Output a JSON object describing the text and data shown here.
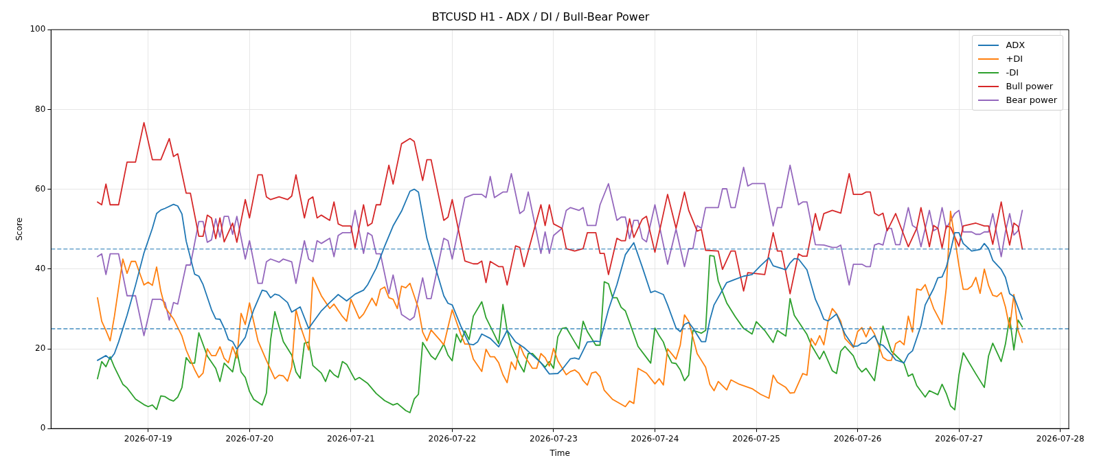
{
  "chart_data": {
    "type": "line",
    "title": "BTCUSD H1 - ADX / DI / Bull-Bear Power",
    "xlabel": "Time",
    "ylabel": "Score",
    "xlim": [
      "2026-07-18T01:00",
      "2026-07-28T02:00"
    ],
    "xticks": [
      "2026-07-19",
      "2026-07-20",
      "2026-07-21",
      "2026-07-22",
      "2026-07-23",
      "2026-07-24",
      "2026-07-25",
      "2026-07-26",
      "2026-07-27",
      "2026-07-28"
    ],
    "ylim": [
      0,
      100
    ],
    "yticks": [
      0,
      20,
      40,
      60,
      80,
      100
    ],
    "grid": true,
    "legend": "top right",
    "ref_lines": [
      {
        "axis": "y",
        "value": 45,
        "color": "#1f77b4",
        "line_style": "dashed"
      },
      {
        "axis": "y",
        "value": 25,
        "color": "#1f77b4",
        "line_style": "dashed"
      }
    ],
    "series": [
      {
        "name": "ADX",
        "color": "#1f77b4",
        "x": [
          "2026-07-18T12:00",
          "2026-07-18T13:00",
          "2026-07-18T14:00",
          "2026-07-18T15:00",
          "2026-07-18T16:00",
          "2026-07-18T17:00",
          "2026-07-18T19:00",
          "2026-07-18T21:00",
          "2026-07-18T23:00",
          "2026-07-19T01:00",
          "2026-07-19T02:00",
          "2026-07-19T03:00",
          "2026-07-19T04:00",
          "2026-07-19T06:00",
          "2026-07-19T07:00",
          "2026-07-19T08:00",
          "2026-07-19T09:00",
          "2026-07-19T11:00",
          "2026-07-19T12:00",
          "2026-07-19T13:00",
          "2026-07-19T15:00",
          "2026-07-19T16:00",
          "2026-07-19T17:00",
          "2026-07-19T18:00",
          "2026-07-19T19:00",
          "2026-07-19T20:00",
          "2026-07-19T21:00",
          "2026-07-19T22:00",
          "2026-07-19T23:00",
          "2026-07-20T00:00",
          "2026-07-20T01:00",
          "2026-07-20T03:00",
          "2026-07-20T04:00",
          "2026-07-20T05:00",
          "2026-07-20T06:00",
          "2026-07-20T07:00",
          "2026-07-20T09:00",
          "2026-07-20T10:00",
          "2026-07-20T12:00",
          "2026-07-20T14:00",
          "2026-07-20T15:00",
          "2026-07-20T17:00",
          "2026-07-20T19:00",
          "2026-07-20T21:00",
          "2026-07-20T23:00",
          "2026-07-21T01:00",
          "2026-07-21T03:00",
          "2026-07-21T04:00",
          "2026-07-21T06:00",
          "2026-07-21T08:00",
          "2026-07-21T10:00",
          "2026-07-21T12:00",
          "2026-07-21T14:00",
          "2026-07-21T15:00",
          "2026-07-21T16:00",
          "2026-07-21T18:00",
          "2026-07-21T20:00",
          "2026-07-21T22:00",
          "2026-07-21T23:00",
          "2026-07-22T00:00",
          "2026-07-22T02:00",
          "2026-07-22T04:00",
          "2026-07-22T05:00",
          "2026-07-22T06:00",
          "2026-07-22T07:00",
          "2026-07-22T09:00",
          "2026-07-22T11:00",
          "2026-07-22T13:00",
          "2026-07-22T15:00",
          "2026-07-22T17:00",
          "2026-07-22T19:00",
          "2026-07-22T21:00",
          "2026-07-22T23:00",
          "2026-07-23T01:00",
          "2026-07-23T02:00",
          "2026-07-23T04:00",
          "2026-07-23T05:00",
          "2026-07-23T06:00",
          "2026-07-23T08:00",
          "2026-07-23T10:00",
          "2026-07-23T11:00",
          "2026-07-23T13:00",
          "2026-07-23T15:00",
          "2026-07-23T17:00",
          "2026-07-23T19:00",
          "2026-07-23T21:00",
          "2026-07-23T23:00",
          "2026-07-24T00:00",
          "2026-07-24T02:00",
          "2026-07-24T03:00",
          "2026-07-24T05:00",
          "2026-07-24T06:00",
          "2026-07-24T07:00",
          "2026-07-24T08:00",
          "2026-07-24T09:00",
          "2026-07-24T11:00",
          "2026-07-24T12:00",
          "2026-07-24T13:00",
          "2026-07-24T14:00",
          "2026-07-24T17:00",
          "2026-07-24T19:00",
          "2026-07-24T21:00",
          "2026-07-24T23:00",
          "2026-07-25T01:00",
          "2026-07-25T03:00",
          "2026-07-25T04:00",
          "2026-07-25T07:00",
          "2026-07-25T08:00",
          "2026-07-25T09:00",
          "2026-07-25T10:00",
          "2026-07-25T12:00",
          "2026-07-25T14:00",
          "2026-07-25T15:00",
          "2026-07-25T16:00",
          "2026-07-25T17:00",
          "2026-07-25T19:00",
          "2026-07-25T21:00",
          "2026-07-25T23:00",
          "2026-07-26T00:00",
          "2026-07-26T01:00",
          "2026-07-26T02:00",
          "2026-07-26T04:00",
          "2026-07-26T05:00",
          "2026-07-26T06:00",
          "2026-07-26T08:00",
          "2026-07-26T09:00",
          "2026-07-26T11:00",
          "2026-07-26T12:00",
          "2026-07-26T13:00",
          "2026-07-26T15:00",
          "2026-07-26T16:00",
          "2026-07-26T18:00",
          "2026-07-26T19:00",
          "2026-07-26T20:00",
          "2026-07-26T21:00",
          "2026-07-26T22:00",
          "2026-07-26T23:00",
          "2026-07-27T00:00",
          "2026-07-27T01:00",
          "2026-07-27T03:00",
          "2026-07-27T05:00",
          "2026-07-27T06:00",
          "2026-07-27T07:00",
          "2026-07-27T08:00",
          "2026-07-27T10:00",
          "2026-07-27T11:00",
          "2026-07-27T12:00",
          "2026-07-27T13:00",
          "2026-07-27T15:00"
        ],
        "values": [
          17.1,
          17.7,
          18.3,
          17.4,
          18.8,
          21.7,
          28.4,
          35.9,
          44.0,
          50.2,
          53.9,
          54.8,
          55.2,
          56.2,
          55.8,
          53.8,
          47.0,
          38.7,
          38.2,
          36.1,
          29.8,
          27.5,
          27.4,
          25.2,
          22.3,
          21.8,
          19.9,
          21.4,
          22.9,
          26.6,
          29.8,
          34.7,
          34.4,
          32.8,
          33.7,
          33.4,
          31.6,
          29.2,
          30.5,
          25.1,
          26.6,
          29.5,
          31.6,
          33.6,
          32.0,
          33.7,
          34.7,
          36.1,
          40.2,
          45.7,
          50.8,
          54.5,
          59.5,
          60.0,
          59.3,
          47.7,
          40.5,
          33.3,
          31.4,
          31.0,
          25.8,
          21.2,
          21.0,
          21.7,
          23.7,
          22.6,
          20.5,
          24.6,
          21.7,
          20.3,
          18.4,
          16.5,
          13.7,
          13.8,
          14.8,
          17.5,
          17.7,
          17.4,
          21.7,
          21.9,
          21.8,
          29.8,
          36.1,
          43.6,
          46.6,
          40.5,
          34.1,
          34.5,
          33.6,
          31.0,
          25.2,
          24.3,
          26.1,
          26.6,
          25.2,
          21.8,
          21.8,
          27.2,
          31.0,
          36.6,
          37.4,
          38.2,
          38.6,
          40.8,
          42.8,
          40.8,
          39.8,
          41.5,
          42.6,
          42.5,
          39.8,
          32.4,
          30.1,
          27.4,
          27.0,
          28.7,
          23.7,
          20.6,
          20.7,
          21.4,
          21.4,
          23.3,
          21.2,
          20.9,
          18.6,
          17.2,
          16.5,
          18.6,
          19.5,
          25.8,
          31.0,
          35.1,
          37.8,
          38.0,
          40.5,
          44.5,
          49.1,
          49.1,
          46.4,
          44.5,
          44.9,
          46.4,
          45.1,
          42.2,
          39.9,
          37.9,
          33.8,
          33.1,
          27.4
        ]
      },
      {
        "name": "+DI",
        "color": "#ff7f0e",
        "x": [
          "2026-07-18T12:00",
          "2026-07-18T13:00",
          "2026-07-18T14:00",
          "2026-07-18T15:00",
          "2026-07-18T16:00",
          "2026-07-18T18:00",
          "2026-07-18T19:00",
          "2026-07-18T20:00",
          "2026-07-18T21:00",
          "2026-07-18T23:00",
          "2026-07-19T00:00",
          "2026-07-19T01:00",
          "2026-07-19T02:00",
          "2026-07-19T03:00",
          "2026-07-19T04:00",
          "2026-07-19T06:00",
          "2026-07-19T08:00",
          "2026-07-19T09:00",
          "2026-07-19T11:00",
          "2026-07-19T12:00",
          "2026-07-19T13:00",
          "2026-07-19T14:00",
          "2026-07-19T15:00",
          "2026-07-19T16:00",
          "2026-07-19T17:00",
          "2026-07-19T18:00",
          "2026-07-19T19:00",
          "2026-07-19T20:00",
          "2026-07-19T21:00",
          "2026-07-19T22:00",
          "2026-07-19T23:00",
          "2026-07-20T00:00",
          "2026-07-20T02:00",
          "2026-07-20T04:00",
          "2026-07-20T06:00",
          "2026-07-20T07:00",
          "2026-07-20T08:00",
          "2026-07-20T09:00",
          "2026-07-20T10:00",
          "2026-07-20T11:00",
          "2026-07-20T12:00",
          "2026-07-20T14:00",
          "2026-07-20T15:00",
          "2026-07-20T17:00",
          "2026-07-20T19:00",
          "2026-07-20T20:00",
          "2026-07-20T22:00",
          "2026-07-20T23:00",
          "2026-07-21T00:00",
          "2026-07-21T02:00",
          "2026-07-21T03:00",
          "2026-07-21T05:00",
          "2026-07-21T06:00",
          "2026-07-21T07:00",
          "2026-07-21T08:00",
          "2026-07-21T09:00",
          "2026-07-21T10:00",
          "2026-07-21T11:00",
          "2026-07-21T12:00",
          "2026-07-21T13:00",
          "2026-07-21T14:00",
          "2026-07-21T16:00",
          "2026-07-21T17:00",
          "2026-07-21T18:00",
          "2026-07-21T19:00",
          "2026-07-21T21:00",
          "2026-07-21T22:00",
          "2026-07-22T00:00",
          "2026-07-22T02:00",
          "2026-07-22T03:00",
          "2026-07-22T04:00",
          "2026-07-22T05:00",
          "2026-07-22T07:00",
          "2026-07-22T08:00",
          "2026-07-22T09:00",
          "2026-07-22T10:00",
          "2026-07-22T11:00",
          "2026-07-22T12:00",
          "2026-07-22T13:00",
          "2026-07-22T14:00",
          "2026-07-22T15:00",
          "2026-07-22T16:00",
          "2026-07-22T17:00",
          "2026-07-22T19:00",
          "2026-07-22T20:00",
          "2026-07-22T21:00",
          "2026-07-22T22:00",
          "2026-07-22T23:00",
          "2026-07-23T00:00",
          "2026-07-23T01:00",
          "2026-07-23T03:00",
          "2026-07-23T04:00",
          "2026-07-23T05:00",
          "2026-07-23T06:00",
          "2026-07-23T07:00",
          "2026-07-23T08:00",
          "2026-07-23T09:00",
          "2026-07-23T10:00",
          "2026-07-23T11:00",
          "2026-07-23T12:00",
          "2026-07-23T14:00",
          "2026-07-23T17:00",
          "2026-07-23T18:00",
          "2026-07-23T19:00",
          "2026-07-23T20:00",
          "2026-07-23T22:00",
          "2026-07-24T00:00",
          "2026-07-24T01:00",
          "2026-07-24T02:00",
          "2026-07-24T03:00",
          "2026-07-24T05:00",
          "2026-07-24T06:00",
          "2026-07-24T07:00",
          "2026-07-24T08:00",
          "2026-07-24T10:00",
          "2026-07-24T12:00",
          "2026-07-24T13:00",
          "2026-07-24T14:00",
          "2026-07-24T15:00",
          "2026-07-24T17:00",
          "2026-07-24T18:00",
          "2026-07-24T20:00",
          "2026-07-24T23:00",
          "2026-07-25T01:00",
          "2026-07-25T03:00",
          "2026-07-25T04:00",
          "2026-07-25T05:00",
          "2026-07-25T07:00",
          "2026-07-25T08:00",
          "2026-07-25T09:00",
          "2026-07-25T11:00",
          "2026-07-25T12:00",
          "2026-07-25T13:00",
          "2026-07-25T14:00",
          "2026-07-25T15:00",
          "2026-07-25T16:00",
          "2026-07-25T17:00",
          "2026-07-25T18:00",
          "2026-07-25T19:00",
          "2026-07-25T20:00",
          "2026-07-25T21:00",
          "2026-07-25T23:00",
          "2026-07-26T00:00",
          "2026-07-26T01:00",
          "2026-07-26T02:00",
          "2026-07-26T03:00",
          "2026-07-26T04:00",
          "2026-07-26T06:00",
          "2026-07-26T07:00",
          "2026-07-26T08:00",
          "2026-07-26T09:00",
          "2026-07-26T10:00",
          "2026-07-26T11:00",
          "2026-07-26T12:00",
          "2026-07-26T13:00",
          "2026-07-26T14:00",
          "2026-07-26T15:00",
          "2026-07-26T16:00",
          "2026-07-26T18:00",
          "2026-07-26T20:00",
          "2026-07-26T21:00",
          "2026-07-26T22:00",
          "2026-07-27T00:00",
          "2026-07-27T01:00",
          "2026-07-27T02:00",
          "2026-07-27T03:00",
          "2026-07-27T04:00",
          "2026-07-27T05:00",
          "2026-07-27T06:00",
          "2026-07-27T07:00",
          "2026-07-27T08:00",
          "2026-07-27T09:00",
          "2026-07-27T10:00",
          "2026-07-27T11:00",
          "2026-07-27T12:00",
          "2026-07-27T13:00",
          "2026-07-27T14:00",
          "2026-07-27T15:00"
        ],
        "values": [
          32.8,
          26.9,
          24.6,
          22.0,
          28.1,
          42.5,
          38.9,
          41.9,
          41.9,
          36.0,
          36.7,
          35.9,
          40.5,
          34.4,
          30.4,
          27.5,
          23.2,
          19.7,
          14.8,
          12.8,
          13.9,
          20.0,
          18.3,
          18.3,
          20.5,
          17.6,
          16.5,
          20.5,
          17.7,
          28.9,
          26.1,
          31.5,
          22.0,
          17.1,
          12.5,
          13.4,
          13.2,
          11.9,
          15.4,
          29.8,
          25.8,
          19.7,
          37.9,
          33.3,
          30.1,
          31.2,
          28.1,
          26.9,
          32.4,
          27.6,
          28.7,
          32.7,
          30.8,
          34.9,
          35.5,
          32.8,
          32.4,
          30.1,
          35.7,
          35.3,
          36.4,
          30.1,
          24.2,
          22.0,
          24.7,
          22.3,
          21.0,
          29.8,
          23.7,
          21.2,
          21.2,
          17.4,
          14.3,
          19.9,
          18.0,
          18.0,
          16.5,
          13.5,
          11.5,
          16.7,
          14.8,
          20.9,
          18.4,
          15.1,
          15.1,
          18.8,
          17.8,
          15.7,
          20.1,
          17.0,
          13.5,
          14.3,
          14.7,
          13.9,
          12.0,
          10.9,
          13.9,
          14.2,
          13.0,
          9.6,
          7.3,
          5.5,
          6.9,
          6.3,
          15.1,
          13.9,
          11.2,
          12.5,
          10.9,
          20.0,
          17.4,
          20.9,
          28.5,
          26.9,
          18.8,
          15.4,
          11.1,
          9.5,
          11.8,
          9.7,
          12.2,
          11.1,
          10.0,
          8.6,
          7.6,
          13.4,
          11.6,
          10.3,
          8.9,
          9.0,
          13.8,
          13.4,
          22.6,
          20.9,
          23.3,
          21.0,
          26.9,
          30.1,
          28.8,
          26.9,
          22.6,
          20.3,
          24.3,
          25.3,
          23.0,
          25.5,
          23.7,
          17.8,
          17.1,
          17.1,
          21.3,
          22.0,
          21.0,
          28.2,
          24.2,
          35.0,
          34.7,
          36.1,
          30.1,
          26.1,
          35.3,
          54.5,
          40.8,
          34.9,
          34.9,
          35.7,
          37.9,
          33.9,
          40.0,
          35.9,
          33.4,
          33.1,
          34.1,
          30.5,
          25.2,
          33.6,
          24.6,
          21.6
        ]
      },
      {
        "name": "-DI",
        "color": "#2ca02c",
        "x": [
          "2026-07-18T12:00",
          "2026-07-18T13:00",
          "2026-07-18T14:00",
          "2026-07-18T15:00",
          "2026-07-18T16:00",
          "2026-07-18T18:00",
          "2026-07-18T19:00",
          "2026-07-18T21:00",
          "2026-07-18T23:00",
          "2026-07-19T00:00",
          "2026-07-19T01:00",
          "2026-07-19T02:00",
          "2026-07-19T03:00",
          "2026-07-19T04:00",
          "2026-07-19T05:00",
          "2026-07-19T06:00",
          "2026-07-19T07:00",
          "2026-07-19T08:00",
          "2026-07-19T09:00",
          "2026-07-19T10:00",
          "2026-07-19T11:00",
          "2026-07-19T12:00",
          "2026-07-19T14:00",
          "2026-07-19T16:00",
          "2026-07-19T17:00",
          "2026-07-19T18:00",
          "2026-07-19T20:00",
          "2026-07-19T21:00",
          "2026-07-19T22:00",
          "2026-07-19T23:00",
          "2026-07-20T00:00",
          "2026-07-20T01:00",
          "2026-07-20T03:00",
          "2026-07-20T04:00",
          "2026-07-20T05:00",
          "2026-07-20T06:00",
          "2026-07-20T08:00",
          "2026-07-20T10:00",
          "2026-07-20T11:00",
          "2026-07-20T12:00",
          "2026-07-20T13:00",
          "2026-07-20T14:00",
          "2026-07-20T15:00",
          "2026-07-20T17:00",
          "2026-07-20T18:00",
          "2026-07-20T19:00",
          "2026-07-20T20:00",
          "2026-07-20T21:00",
          "2026-07-20T22:00",
          "2026-07-20T23:00",
          "2026-07-21T01:00",
          "2026-07-21T02:00",
          "2026-07-21T04:00",
          "2026-07-21T06:00",
          "2026-07-21T08:00",
          "2026-07-21T10:00",
          "2026-07-21T11:00",
          "2026-07-21T13:00",
          "2026-07-21T14:00",
          "2026-07-21T15:00",
          "2026-07-21T16:00",
          "2026-07-21T17:00",
          "2026-07-21T19:00",
          "2026-07-21T20:00",
          "2026-07-21T22:00",
          "2026-07-21T23:00",
          "2026-07-22T00:00",
          "2026-07-22T01:00",
          "2026-07-22T02:00",
          "2026-07-22T03:00",
          "2026-07-22T04:00",
          "2026-07-22T05:00",
          "2026-07-22T07:00",
          "2026-07-22T08:00",
          "2026-07-22T10:00",
          "2026-07-22T11:00",
          "2026-07-22T12:00",
          "2026-07-22T13:00",
          "2026-07-22T14:00",
          "2026-07-22T16:00",
          "2026-07-22T17:00",
          "2026-07-22T18:00",
          "2026-07-22T19:00",
          "2026-07-22T21:00",
          "2026-07-22T22:00",
          "2026-07-22T23:00",
          "2026-07-23T00:00",
          "2026-07-23T01:00",
          "2026-07-23T02:00",
          "2026-07-23T03:00",
          "2026-07-23T05:00",
          "2026-07-23T06:00",
          "2026-07-23T07:00",
          "2026-07-23T08:00",
          "2026-07-23T10:00",
          "2026-07-23T11:00",
          "2026-07-23T12:00",
          "2026-07-23T13:00",
          "2026-07-23T14:00",
          "2026-07-23T15:00",
          "2026-07-23T16:00",
          "2026-07-23T17:00",
          "2026-07-23T18:00",
          "2026-07-23T20:00",
          "2026-07-23T23:00",
          "2026-07-24T00:00",
          "2026-07-24T01:00",
          "2026-07-24T02:00",
          "2026-07-24T03:00",
          "2026-07-24T04:00",
          "2026-07-24T05:00",
          "2026-07-24T06:00",
          "2026-07-24T07:00",
          "2026-07-24T08:00",
          "2026-07-24T09:00",
          "2026-07-24T10:00",
          "2026-07-24T11:00",
          "2026-07-24T12:00",
          "2026-07-24T13:00",
          "2026-07-24T14:00",
          "2026-07-24T15:00",
          "2026-07-24T17:00",
          "2026-07-24T19:00",
          "2026-07-24T21:00",
          "2026-07-24T23:00",
          "2026-07-25T00:00",
          "2026-07-25T02:00",
          "2026-07-25T04:00",
          "2026-07-25T05:00",
          "2026-07-25T07:00",
          "2026-07-25T08:00",
          "2026-07-25T09:00",
          "2026-07-25T12:00",
          "2026-07-25T13:00",
          "2026-07-25T15:00",
          "2026-07-25T16:00",
          "2026-07-25T18:00",
          "2026-07-25T19:00",
          "2026-07-25T20:00",
          "2026-07-25T21:00",
          "2026-07-25T23:00",
          "2026-07-26T00:00",
          "2026-07-26T01:00",
          "2026-07-26T02:00",
          "2026-07-26T04:00",
          "2026-07-26T06:00",
          "2026-07-26T08:00",
          "2026-07-26T11:00",
          "2026-07-26T12:00",
          "2026-07-26T13:00",
          "2026-07-26T14:00",
          "2026-07-26T16:00",
          "2026-07-26T17:00",
          "2026-07-26T19:00",
          "2026-07-26T20:00",
          "2026-07-26T21:00",
          "2026-07-26T22:00",
          "2026-07-26T23:00",
          "2026-07-27T00:00",
          "2026-07-27T01:00",
          "2026-07-27T04:00",
          "2026-07-27T06:00",
          "2026-07-27T07:00",
          "2026-07-27T08:00",
          "2026-07-27T10:00",
          "2026-07-27T11:00",
          "2026-07-27T12:00",
          "2026-07-27T13:00",
          "2026-07-27T14:00",
          "2026-07-27T15:00"
        ],
        "values": [
          12.5,
          16.8,
          15.5,
          18.0,
          15.4,
          11.1,
          10.2,
          7.4,
          6.0,
          5.5,
          5.9,
          4.8,
          8.2,
          8.0,
          7.3,
          6.9,
          7.9,
          10.3,
          17.8,
          16.4,
          16.4,
          24.0,
          18.2,
          15.1,
          11.8,
          16.4,
          14.2,
          19.5,
          14.2,
          12.8,
          9.3,
          7.3,
          5.9,
          8.9,
          22.3,
          29.3,
          21.8,
          18.4,
          14.2,
          12.6,
          21.4,
          21.7,
          15.8,
          13.9,
          11.8,
          14.7,
          13.5,
          12.8,
          16.8,
          16.1,
          12.2,
          12.8,
          11.3,
          8.8,
          7.0,
          5.9,
          6.3,
          4.5,
          4.0,
          7.4,
          8.6,
          21.6,
          18.2,
          17.3,
          21.2,
          18.4,
          17.0,
          23.7,
          21.6,
          24.5,
          22.3,
          28.2,
          31.8,
          27.8,
          23.5,
          21.3,
          31.1,
          24.6,
          20.9,
          16.0,
          14.2,
          18.8,
          18.8,
          16.5,
          15.4,
          16.8,
          15.1,
          23.0,
          25.1,
          25.3,
          21.7,
          20.0,
          26.9,
          24.3,
          20.9,
          20.9,
          36.8,
          36.3,
          32.8,
          32.8,
          30.4,
          29.5,
          26.6,
          20.6,
          16.4,
          25.2,
          23.3,
          21.7,
          18.6,
          16.5,
          16.3,
          14.7,
          12.0,
          13.4,
          24.6,
          24.3,
          23.9,
          24.6,
          43.4,
          43.2,
          37.0,
          31.5,
          28.1,
          25.1,
          23.7,
          26.8,
          24.6,
          21.6,
          24.6,
          23.2,
          32.6,
          28.4,
          23.6,
          21.0,
          17.4,
          19.4,
          14.5,
          13.8,
          19.4,
          20.6,
          18.2,
          15.5,
          14.2,
          15.1,
          12.0,
          25.7,
          19.4,
          16.3,
          13.1,
          13.7,
          10.8,
          7.9,
          9.5,
          8.5,
          11.1,
          8.8,
          5.7,
          4.7,
          13.5,
          19.0,
          13.7,
          10.3,
          18.2,
          21.4,
          16.8,
          21.2,
          27.8,
          19.7,
          27.2,
          25.5
        ]
      },
      {
        "name": "Bull power",
        "color": "#d62728",
        "x": [
          "2026-07-18T12:00",
          "2026-07-18T13:00",
          "2026-07-18T14:00",
          "2026-07-18T15:00",
          "2026-07-18T17:00",
          "2026-07-18T19:00",
          "2026-07-18T21:00",
          "2026-07-18T23:00",
          "2026-07-19T01:00",
          "2026-07-19T03:00",
          "2026-07-19T05:00",
          "2026-07-19T06:00",
          "2026-07-19T07:00",
          "2026-07-19T09:00",
          "2026-07-19T10:00",
          "2026-07-19T12:00",
          "2026-07-19T13:00",
          "2026-07-19T14:00",
          "2026-07-19T15:00",
          "2026-07-19T16:00",
          "2026-07-19T17:00",
          "2026-07-19T18:00",
          "2026-07-19T20:00",
          "2026-07-19T21:00",
          "2026-07-19T23:00",
          "2026-07-20T00:00",
          "2026-07-20T02:00",
          "2026-07-20T03:00",
          "2026-07-20T04:00",
          "2026-07-20T05:00",
          "2026-07-20T07:00",
          "2026-07-20T09:00",
          "2026-07-20T10:00",
          "2026-07-20T11:00",
          "2026-07-20T13:00",
          "2026-07-20T14:00",
          "2026-07-20T15:00",
          "2026-07-20T16:00",
          "2026-07-20T17:00",
          "2026-07-20T19:00",
          "2026-07-20T20:00",
          "2026-07-20T21:00",
          "2026-07-20T22:00",
          "2026-07-21T00:00",
          "2026-07-21T01:00",
          "2026-07-21T03:00",
          "2026-07-21T04:00",
          "2026-07-21T05:00",
          "2026-07-21T06:00",
          "2026-07-21T07:00",
          "2026-07-21T09:00",
          "2026-07-21T10:00",
          "2026-07-21T12:00",
          "2026-07-21T14:00",
          "2026-07-21T15:00",
          "2026-07-21T17:00",
          "2026-07-21T18:00",
          "2026-07-21T19:00",
          "2026-07-21T22:00",
          "2026-07-21T23:00",
          "2026-07-22T00:00",
          "2026-07-22T03:00",
          "2026-07-22T05:00",
          "2026-07-22T06:00",
          "2026-07-22T07:00",
          "2026-07-22T08:00",
          "2026-07-22T09:00",
          "2026-07-22T11:00",
          "2026-07-22T12:00",
          "2026-07-22T13:00",
          "2026-07-22T15:00",
          "2026-07-22T16:00",
          "2026-07-22T17:00",
          "2026-07-22T21:00",
          "2026-07-22T22:00",
          "2026-07-22T23:00",
          "2026-07-23T00:00",
          "2026-07-23T02:00",
          "2026-07-23T03:00",
          "2026-07-23T05:00",
          "2026-07-23T07:00",
          "2026-07-23T08:00",
          "2026-07-23T10:00",
          "2026-07-23T11:00",
          "2026-07-23T12:00",
          "2026-07-23T13:00",
          "2026-07-23T15:00",
          "2026-07-23T16:00",
          "2026-07-23T17:00",
          "2026-07-23T18:00",
          "2026-07-23T19:00",
          "2026-07-23T21:00",
          "2026-07-23T22:00",
          "2026-07-24T00:00",
          "2026-07-24T03:00",
          "2026-07-24T05:00",
          "2026-07-24T07:00",
          "2026-07-24T08:00",
          "2026-07-24T10:00",
          "2026-07-24T11:00",
          "2026-07-24T12:00",
          "2026-07-24T15:00",
          "2026-07-24T16:00",
          "2026-07-24T18:00",
          "2026-07-24T19:00",
          "2026-07-24T21:00",
          "2026-07-24T22:00",
          "2026-07-25T02:00",
          "2026-07-25T04:00",
          "2026-07-25T05:00",
          "2026-07-25T06:00",
          "2026-07-25T08:00",
          "2026-07-25T10:00",
          "2026-07-25T11:00",
          "2026-07-25T12:00",
          "2026-07-25T14:00",
          "2026-07-25T15:00",
          "2026-07-25T16:00",
          "2026-07-25T18:00",
          "2026-07-25T20:00",
          "2026-07-25T22:00",
          "2026-07-25T23:00",
          "2026-07-26T01:00",
          "2026-07-26T02:00",
          "2026-07-26T03:00",
          "2026-07-26T04:00",
          "2026-07-26T05:00",
          "2026-07-26T06:00",
          "2026-07-26T07:00",
          "2026-07-26T09:00",
          "2026-07-26T12:00",
          "2026-07-26T14:00",
          "2026-07-26T15:00",
          "2026-07-26T17:00",
          "2026-07-26T18:00",
          "2026-07-26T19:00",
          "2026-07-26T20:00",
          "2026-07-26T21:00",
          "2026-07-26T22:00",
          "2026-07-27T00:00",
          "2026-07-27T01:00",
          "2026-07-27T04:00",
          "2026-07-27T06:00",
          "2026-07-27T07:00",
          "2026-07-27T08:00",
          "2026-07-27T10:00",
          "2026-07-27T11:00",
          "2026-07-27T12:00",
          "2026-07-27T13:00",
          "2026-07-27T14:00",
          "2026-07-27T15:00"
        ],
        "values": [
          56.8,
          56.1,
          61.3,
          56.1,
          56.1,
          66.8,
          66.8,
          76.7,
          67.4,
          67.4,
          72.7,
          68.2,
          68.9,
          59.0,
          59.0,
          48.2,
          48.2,
          53.5,
          52.8,
          47.6,
          52.8,
          46.8,
          51.5,
          46.7,
          57.4,
          52.8,
          63.6,
          63.6,
          58.1,
          57.4,
          58.1,
          57.4,
          58.3,
          63.6,
          52.8,
          57.4,
          58.1,
          52.8,
          53.5,
          52.2,
          56.8,
          51.3,
          50.8,
          50.8,
          45.3,
          56.1,
          50.8,
          51.5,
          56.1,
          56.1,
          66.0,
          61.3,
          71.4,
          72.7,
          72.0,
          62.2,
          67.4,
          67.4,
          52.2,
          53.0,
          57.4,
          42.0,
          41.3,
          41.3,
          42.0,
          36.6,
          41.9,
          40.6,
          40.6,
          36.0,
          45.8,
          45.4,
          40.6,
          56.1,
          50.9,
          56.1,
          51.3,
          50.2,
          45.1,
          44.5,
          45.1,
          49.1,
          49.1,
          43.9,
          43.9,
          38.6,
          47.7,
          47.1,
          47.1,
          52.6,
          47.9,
          52.5,
          53.2,
          44.2,
          58.7,
          50.2,
          59.3,
          54.7,
          49.5,
          49.9,
          44.7,
          44.5,
          39.9,
          44.5,
          44.5,
          34.5,
          39.1,
          38.6,
          49.1,
          44.5,
          44.5,
          33.8,
          43.8,
          43.2,
          43.2,
          53.9,
          49.7,
          53.9,
          54.7,
          54.0,
          63.9,
          58.7,
          58.7,
          59.3,
          59.3,
          54.0,
          53.4,
          54.0,
          49.6,
          53.9,
          45.6,
          50.2,
          55.4,
          45.6,
          50.9,
          50.2,
          45.3,
          50.8,
          50.5,
          45.7,
          50.8,
          51.5,
          50.8,
          50.8,
          46.2,
          56.8,
          50.8,
          46.0,
          51.5,
          50.7,
          45.0
        ]
      },
      {
        "name": "Bear power",
        "color": "#9467bd",
        "x": [
          "2026-07-18T12:00",
          "2026-07-18T13:00",
          "2026-07-18T14:00",
          "2026-07-18T15:00",
          "2026-07-18T17:00",
          "2026-07-18T19:00",
          "2026-07-18T21:00",
          "2026-07-18T23:00",
          "2026-07-19T01:00",
          "2026-07-19T03:00",
          "2026-07-19T04:00",
          "2026-07-19T05:00",
          "2026-07-19T06:00",
          "2026-07-19T07:00",
          "2026-07-19T09:00",
          "2026-07-19T10:00",
          "2026-07-19T12:00",
          "2026-07-19T13:00",
          "2026-07-19T14:00",
          "2026-07-19T15:00",
          "2026-07-19T16:00",
          "2026-07-19T17:00",
          "2026-07-19T18:00",
          "2026-07-19T19:00",
          "2026-07-19T20:00",
          "2026-07-19T21:00",
          "2026-07-19T23:00",
          "2026-07-20T00:00",
          "2026-07-20T02:00",
          "2026-07-20T03:00",
          "2026-07-20T04:00",
          "2026-07-20T05:00",
          "2026-07-20T07:00",
          "2026-07-20T08:00",
          "2026-07-20T10:00",
          "2026-07-20T11:00",
          "2026-07-20T13:00",
          "2026-07-20T14:00",
          "2026-07-20T15:00",
          "2026-07-20T16:00",
          "2026-07-20T17:00",
          "2026-07-20T19:00",
          "2026-07-20T20:00",
          "2026-07-20T21:00",
          "2026-07-20T22:00",
          "2026-07-21T00:00",
          "2026-07-21T01:00",
          "2026-07-21T03:00",
          "2026-07-21T04:00",
          "2026-07-21T05:00",
          "2026-07-21T06:00",
          "2026-07-21T07:00",
          "2026-07-21T09:00",
          "2026-07-21T10:00",
          "2026-07-21T12:00",
          "2026-07-21T14:00",
          "2026-07-21T15:00",
          "2026-07-21T17:00",
          "2026-07-21T18:00",
          "2026-07-21T19:00",
          "2026-07-21T22:00",
          "2026-07-21T23:00",
          "2026-07-22T00:00",
          "2026-07-22T03:00",
          "2026-07-22T05:00",
          "2026-07-22T07:00",
          "2026-07-22T08:00",
          "2026-07-22T09:00",
          "2026-07-22T10:00",
          "2026-07-22T12:00",
          "2026-07-22T13:00",
          "2026-07-22T14:00",
          "2026-07-22T16:00",
          "2026-07-22T17:00",
          "2026-07-22T18:00",
          "2026-07-22T21:00",
          "2026-07-22T22:00",
          "2026-07-22T23:00",
          "2026-07-23T00:00",
          "2026-07-23T02:00",
          "2026-07-23T03:00",
          "2026-07-23T04:00",
          "2026-07-23T06:00",
          "2026-07-23T07:00",
          "2026-07-23T08:00",
          "2026-07-23T10:00",
          "2026-07-23T11:00",
          "2026-07-23T13:00",
          "2026-07-23T15:00",
          "2026-07-23T16:00",
          "2026-07-23T17:00",
          "2026-07-23T18:00",
          "2026-07-23T19:00",
          "2026-07-23T20:00",
          "2026-07-23T21:00",
          "2026-07-23T22:00",
          "2026-07-24T00:00",
          "2026-07-24T03:00",
          "2026-07-24T05:00",
          "2026-07-24T07:00",
          "2026-07-24T08:00",
          "2026-07-24T09:00",
          "2026-07-24T10:00",
          "2026-07-24T11:00",
          "2026-07-24T12:00",
          "2026-07-24T15:00",
          "2026-07-24T16:00",
          "2026-07-24T17:00",
          "2026-07-24T18:00",
          "2026-07-24T19:00",
          "2026-07-24T21:00",
          "2026-07-24T22:00",
          "2026-07-24T23:00",
          "2026-07-25T02:00",
          "2026-07-25T04:00",
          "2026-07-25T05:00",
          "2026-07-25T06:00",
          "2026-07-25T08:00",
          "2026-07-25T10:00",
          "2026-07-25T11:00",
          "2026-07-25T12:00",
          "2026-07-25T14:00",
          "2026-07-25T16:00",
          "2026-07-25T18:00",
          "2026-07-25T19:00",
          "2026-07-25T20:00",
          "2026-07-25T22:00",
          "2026-07-25T23:00",
          "2026-07-26T01:00",
          "2026-07-26T02:00",
          "2026-07-26T03:00",
          "2026-07-26T04:00",
          "2026-07-26T05:00",
          "2026-07-26T06:00",
          "2026-07-26T07:00",
          "2026-07-26T08:00",
          "2026-07-26T09:00",
          "2026-07-26T10:00",
          "2026-07-26T12:00",
          "2026-07-26T13:00",
          "2026-07-26T14:00",
          "2026-07-26T15:00",
          "2026-07-26T17:00",
          "2026-07-26T18:00",
          "2026-07-26T19:00",
          "2026-07-26T20:00",
          "2026-07-26T21:00",
          "2026-07-26T23:00",
          "2026-07-27T00:00",
          "2026-07-27T01:00",
          "2026-07-27T03:00",
          "2026-07-27T04:00",
          "2026-07-27T05:00",
          "2026-07-27T06:00",
          "2026-07-27T07:00",
          "2026-07-27T08:00",
          "2026-07-27T10:00",
          "2026-07-27T11:00",
          "2026-07-27T12:00",
          "2026-07-27T13:00",
          "2026-07-27T14:00",
          "2026-07-27T15:00"
        ],
        "values": [
          43.1,
          43.8,
          38.6,
          43.8,
          43.8,
          33.3,
          33.3,
          23.3,
          32.4,
          32.4,
          31.6,
          27.2,
          31.6,
          31.2,
          41.0,
          41.0,
          51.9,
          51.9,
          46.7,
          47.3,
          52.6,
          48.0,
          53.2,
          53.2,
          48.7,
          53.2,
          42.5,
          47.1,
          36.4,
          36.4,
          41.8,
          42.5,
          41.7,
          42.5,
          41.8,
          36.4,
          47.1,
          42.5,
          41.8,
          47.1,
          46.4,
          47.7,
          43.1,
          48.4,
          49.1,
          49.1,
          54.7,
          43.9,
          49.1,
          48.4,
          43.8,
          43.8,
          33.8,
          38.5,
          28.6,
          27.2,
          28.0,
          37.8,
          32.6,
          32.6,
          47.7,
          47.1,
          42.5,
          57.9,
          58.7,
          58.7,
          57.9,
          63.2,
          57.9,
          59.3,
          59.3,
          63.9,
          53.9,
          54.7,
          59.3,
          43.9,
          49.3,
          43.9,
          48.4,
          50.2,
          54.7,
          55.4,
          54.7,
          55.4,
          50.9,
          50.9,
          56.1,
          61.4,
          52.2,
          53.0,
          53.0,
          47.6,
          52.2,
          52.2,
          47.6,
          46.8,
          56.1,
          41.2,
          50.0,
          40.6,
          45.1,
          45.1,
          50.9,
          50.2,
          55.4,
          55.4,
          60.1,
          60.1,
          55.4,
          55.4,
          65.5,
          60.8,
          61.4,
          61.4,
          50.8,
          55.4,
          55.4,
          66.0,
          56.1,
          56.8,
          56.8,
          46.1,
          46.0,
          45.4,
          45.4,
          46.0,
          36.0,
          41.2,
          41.2,
          40.6,
          40.6,
          46.0,
          46.4,
          46.0,
          50.2,
          50.2,
          46.1,
          46.1,
          55.4,
          50.9,
          50.2,
          45.6,
          54.7,
          49.6,
          50.2,
          55.4,
          50.2,
          53.9,
          54.7,
          49.3,
          49.3,
          48.7,
          48.7,
          49.3,
          49.3,
          53.9,
          43.1,
          49.3,
          53.9,
          48.5,
          49.6,
          54.7
        ]
      }
    ]
  }
}
